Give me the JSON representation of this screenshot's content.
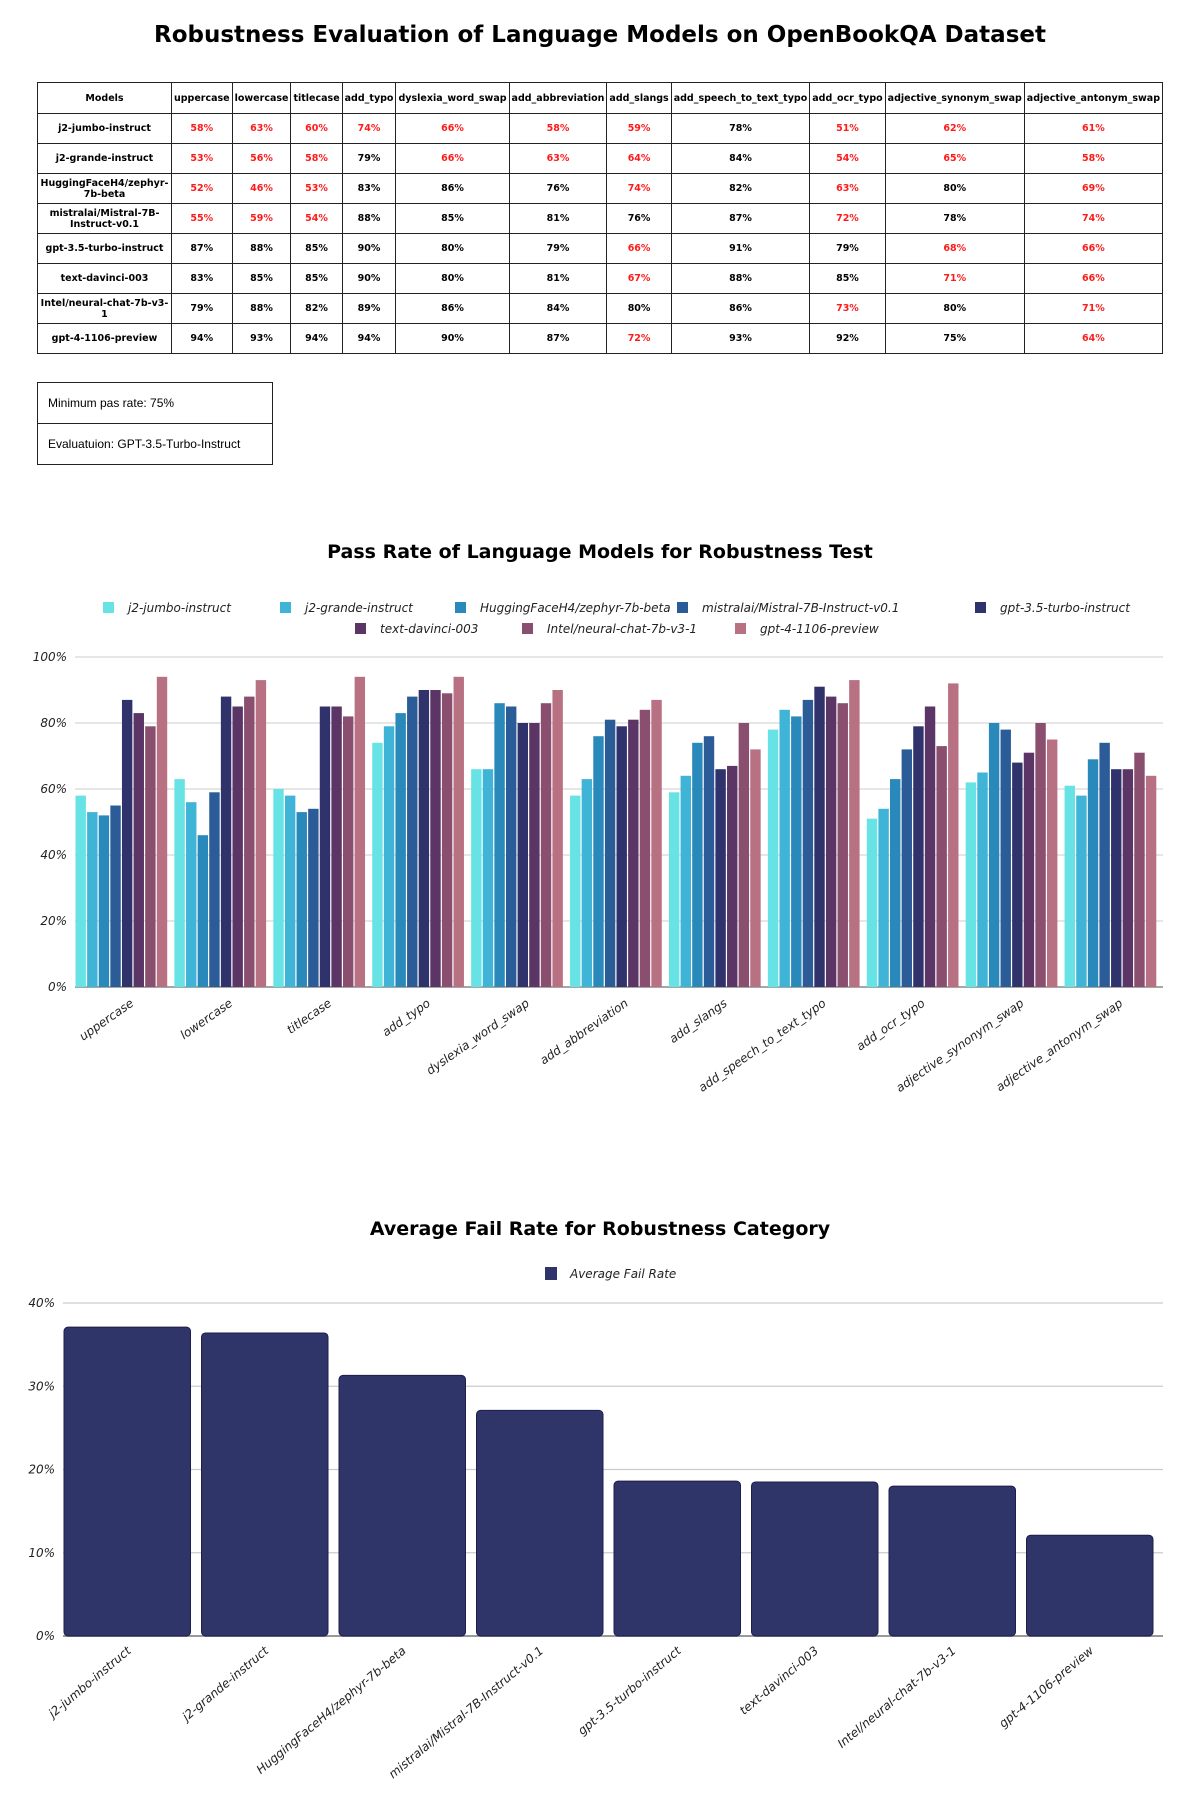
{
  "title": "Robustness Evaluation of Language Models on OpenBookQA Dataset",
  "table": {
    "header": [
      "Models",
      "uppercase",
      "lowercase",
      "titlecase",
      "add_typo",
      "dyslexia_word_swap",
      "add_abbreviation",
      "add_slangs",
      "add_speech_to_text_typo",
      "add_ocr_typo",
      "adjective_synonym_swap",
      "adjective_antonym_swap"
    ],
    "rows": [
      [
        "j2-jumbo-instruct",
        "58%",
        "63%",
        "60%",
        "74%",
        "66%",
        "58%",
        "59%",
        "78%",
        "51%",
        "62%",
        "61%"
      ],
      [
        "j2-grande-instruct",
        "53%",
        "56%",
        "58%",
        "79%",
        "66%",
        "63%",
        "64%",
        "84%",
        "54%",
        "65%",
        "58%"
      ],
      [
        "HuggingFaceH4/zephyr-7b-beta",
        "52%",
        "46%",
        "53%",
        "83%",
        "86%",
        "76%",
        "74%",
        "82%",
        "63%",
        "80%",
        "69%"
      ],
      [
        "mistralai/Mistral-7B-Instruct-v0.1",
        "55%",
        "59%",
        "54%",
        "88%",
        "85%",
        "81%",
        "76%",
        "87%",
        "72%",
        "78%",
        "74%"
      ],
      [
        "gpt-3.5-turbo-instruct",
        "87%",
        "88%",
        "85%",
        "90%",
        "80%",
        "79%",
        "66%",
        "91%",
        "79%",
        "68%",
        "66%"
      ],
      [
        "text-davinci-003",
        "83%",
        "85%",
        "85%",
        "90%",
        "80%",
        "81%",
        "67%",
        "88%",
        "85%",
        "71%",
        "66%"
      ],
      [
        "Intel/neural-chat-7b-v3-1",
        "79%",
        "88%",
        "82%",
        "89%",
        "86%",
        "84%",
        "80%",
        "86%",
        "73%",
        "80%",
        "71%"
      ],
      [
        "gpt-4-1106-preview",
        "94%",
        "93%",
        "94%",
        "94%",
        "90%",
        "87%",
        "72%",
        "93%",
        "92%",
        "75%",
        "64%"
      ]
    ],
    "fail_color": "#ff1a1a"
  },
  "notes": [
    "Minimum pas rate: 75%",
    "Evaluatuion: GPT-3.5-Turbo-Instruct"
  ],
  "chart_data": [
    {
      "type": "bar",
      "title": "Pass Rate of Language Models for Robustness Test",
      "categories": [
        "uppercase",
        "lowercase",
        "titlecase",
        "add_typo",
        "dyslexia_word_swap",
        "add_abbreviation",
        "add_slangs",
        "add_speech_to_text_typo",
        "add_ocr_typo",
        "adjective_synonym_swap",
        "adjective_antonym_swap"
      ],
      "series": [
        {
          "name": "j2-jumbo-instruct",
          "color": "#67e3e6",
          "values": [
            58,
            63,
            60,
            74,
            66,
            58,
            59,
            78,
            51,
            62,
            61
          ]
        },
        {
          "name": "j2-grande-instruct",
          "color": "#3fb4d6",
          "values": [
            53,
            56,
            58,
            79,
            66,
            63,
            64,
            84,
            54,
            65,
            58
          ]
        },
        {
          "name": "HuggingFaceH4/zephyr-7b-beta",
          "color": "#2a89bb",
          "values": [
            52,
            46,
            53,
            83,
            86,
            76,
            74,
            82,
            63,
            80,
            69
          ]
        },
        {
          "name": "mistralai/Mistral-7B-Instruct-v0.1",
          "color": "#2b5c97",
          "values": [
            55,
            59,
            54,
            88,
            85,
            81,
            76,
            87,
            72,
            78,
            74
          ]
        },
        {
          "name": "gpt-3.5-turbo-instruct",
          "color": "#30336b",
          "values": [
            87,
            88,
            85,
            90,
            80,
            79,
            66,
            91,
            79,
            68,
            66
          ]
        },
        {
          "name": "text-davinci-003",
          "color": "#5b3566",
          "values": [
            83,
            85,
            85,
            90,
            80,
            81,
            67,
            88,
            85,
            71,
            66
          ]
        },
        {
          "name": "Intel/neural-chat-7b-v3-1",
          "color": "#8a4f6f",
          "values": [
            79,
            88,
            82,
            89,
            86,
            84,
            80,
            86,
            73,
            80,
            71
          ]
        },
        {
          "name": "gpt-4-1106-preview",
          "color": "#b87083",
          "values": [
            94,
            93,
            94,
            94,
            90,
            87,
            72,
            93,
            92,
            75,
            64
          ]
        }
      ],
      "ylim": [
        0,
        100
      ],
      "yticks": [
        "0%",
        "20%",
        "40%",
        "60%",
        "80%",
        "100%"
      ],
      "grid": true,
      "legend": "top"
    },
    {
      "type": "bar",
      "title": "Average Fail Rate for Robustness Category",
      "categories": [
        "j2-jumbo-instruct",
        "j2-grande-instruct",
        "HuggingFaceH4/zephyr-7b-beta",
        "mistralai/Mistral-7B-Instruct-v0.1",
        "gpt-3.5-turbo-instruct",
        "text-davinci-003",
        "Intel/neural-chat-7b-v3-1",
        "gpt-4-1106-preview"
      ],
      "series": [
        {
          "name": "Average Fail Rate",
          "color": "#2f3469",
          "values": [
            37.1,
            36.4,
            31.3,
            27.1,
            18.6,
            18.5,
            18.0,
            12.1
          ]
        }
      ],
      "ylim": [
        0,
        40
      ],
      "yticks": [
        "0%",
        "10%",
        "20%",
        "30%",
        "40%"
      ],
      "grid": true,
      "legend": "top"
    }
  ]
}
